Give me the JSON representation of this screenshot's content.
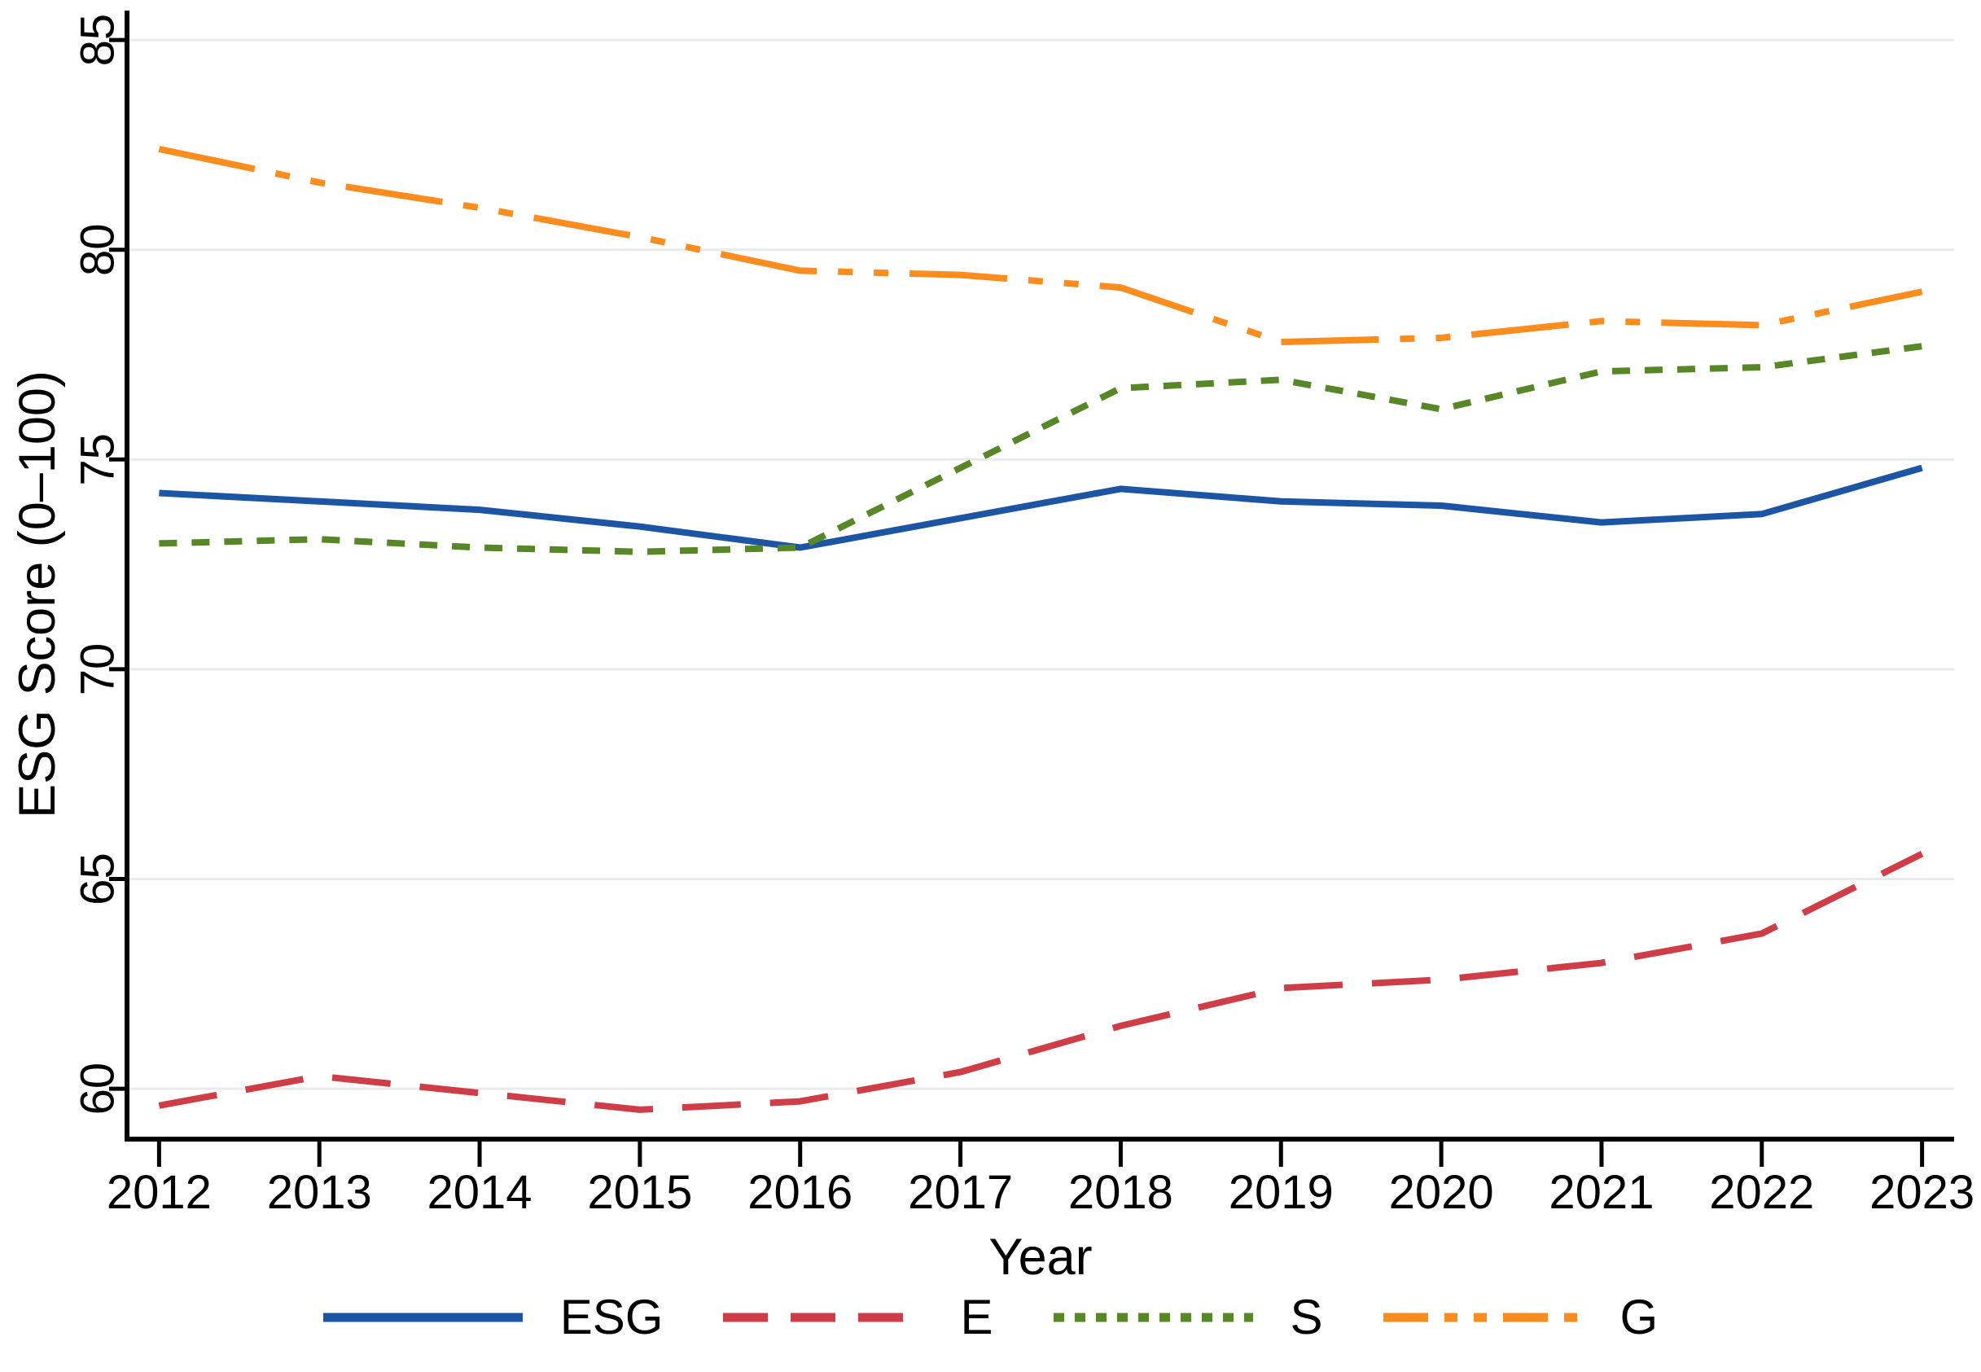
{
  "chart_data": {
    "type": "line",
    "title": "",
    "xlabel": "Year",
    "ylabel": "ESG Score (0–100)",
    "x": [
      2012,
      2013,
      2014,
      2015,
      2016,
      2017,
      2018,
      2019,
      2020,
      2021,
      2022,
      2023
    ],
    "y_ticks": [
      60,
      65,
      70,
      75,
      80,
      85
    ],
    "xlim": [
      2011.8,
      2023.2
    ],
    "ylim": [
      58.8,
      85.7
    ],
    "grid": "horizontal-gridlines-only",
    "gridline_color": "#e8eaeb",
    "axis_color": "#000000",
    "legend_position": "below-plot",
    "series": [
      {
        "name": "ESG",
        "color": "#1c55a3",
        "style": "solid",
        "values": [
          74.2,
          74.0,
          73.8,
          73.4,
          72.9,
          73.6,
          74.3,
          74.0,
          73.9,
          73.5,
          73.7,
          74.8
        ]
      },
      {
        "name": "E",
        "color": "#cf3d47",
        "style": "long-dash",
        "values": [
          59.6,
          60.3,
          59.9,
          59.5,
          59.7,
          60.4,
          61.5,
          62.4,
          62.6,
          63.0,
          63.7,
          65.6
        ]
      },
      {
        "name": "S",
        "color": "#578727",
        "style": "short-dash",
        "values": [
          73.0,
          73.1,
          72.9,
          72.8,
          72.9,
          74.8,
          76.7,
          76.9,
          76.2,
          77.1,
          77.2,
          77.7
        ]
      },
      {
        "name": "G",
        "color": "#fb8d1f",
        "style": "dash-dot-dot",
        "values": [
          82.4,
          81.6,
          81.0,
          80.3,
          79.5,
          79.4,
          79.1,
          77.8,
          77.9,
          78.3,
          78.2,
          79.0
        ]
      }
    ]
  }
}
